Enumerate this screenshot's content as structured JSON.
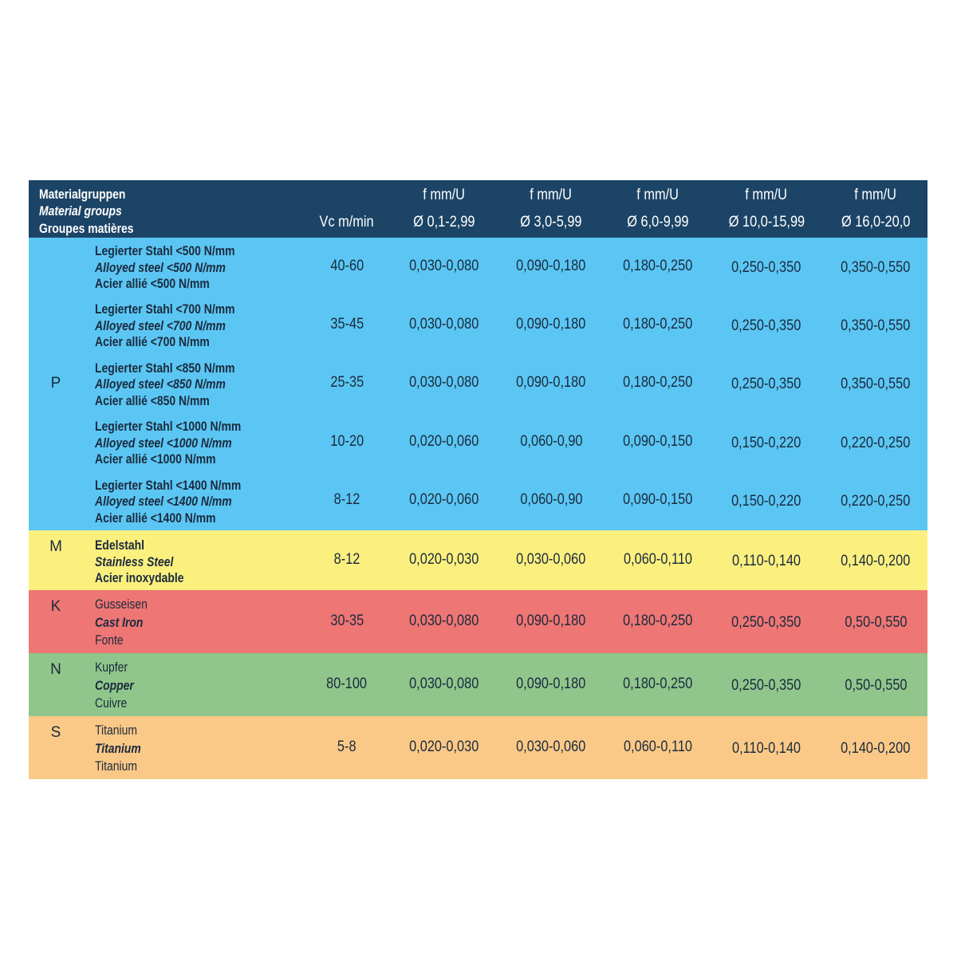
{
  "header": {
    "material_group_labels": [
      "Materialgruppen",
      "Material groups",
      "Groupes matières"
    ],
    "vc_label": "Vc m/min",
    "feed_columns": [
      {
        "unit": "f mm/U",
        "diameter": "Ø 0,1-2,99"
      },
      {
        "unit": "f mm/U",
        "diameter": "Ø 3,0-5,99"
      },
      {
        "unit": "f mm/U",
        "diameter": "Ø 6,0-9,99"
      },
      {
        "unit": "f mm/U",
        "diameter": "Ø 10,0-15,99"
      },
      {
        "unit": "f mm/U",
        "diameter": "Ø 16,0-20,0"
      }
    ]
  },
  "groups": [
    {
      "code": "P",
      "color": "#5bc6f3",
      "rows": [
        {
          "material": [
            "Legierter Stahl <500 N/mm",
            "Alloyed steel  <500 N/mm",
            "Acier allié <500 N/mm"
          ],
          "vc": "40-60",
          "feeds": [
            "0,030-0,080",
            "0,090-0,180",
            "0,180-0,250",
            "0,250-0,350",
            "0,350-0,550"
          ]
        },
        {
          "material": [
            "Legierter Stahl <700 N/mm",
            "Alloyed steel  <700 N/mm",
            "Acier allié <700 N/mm"
          ],
          "vc": "35-45",
          "feeds": [
            "0,030-0,080",
            "0,090-0,180",
            "0,180-0,250",
            "0,250-0,350",
            "0,350-0,550"
          ]
        },
        {
          "material": [
            "Legierter Stahl <850 N/mm",
            "Alloyed steel  <850 N/mm",
            "Acier allié <850 N/mm"
          ],
          "vc": "25-35",
          "feeds": [
            "0,030-0,080",
            "0,090-0,180",
            "0,180-0,250",
            "0,250-0,350",
            "0,350-0,550"
          ]
        },
        {
          "material": [
            "Legierter Stahl <1000 N/mm",
            "Alloyed steel  <1000 N/mm",
            "Acier allié <1000 N/mm"
          ],
          "vc": "10-20",
          "feeds": [
            "0,020-0,060",
            "0,060-0,90",
            "0,090-0,150",
            "0,150-0,220",
            "0,220-0,250"
          ]
        },
        {
          "material": [
            "Legierter Stahl <1400 N/mm",
            "Alloyed steel  <1400 N/mm",
            "Acier allié <1400 N/mm"
          ],
          "vc": "8-12",
          "feeds": [
            "0,020-0,060",
            "0,060-0,90",
            "0,090-0,150",
            "0,150-0,220",
            "0,220-0,250"
          ]
        }
      ]
    },
    {
      "code": "M",
      "color": "#fbf07e",
      "rows": [
        {
          "material": [
            "Edelstahl",
            "Stainless Steel",
            "Acier inoxydable"
          ],
          "vc": "8-12",
          "feeds": [
            "0,020-0,030",
            "0,030-0,060",
            "0,060-0,110",
            "0,110-0,140",
            "0,140-0,200"
          ]
        }
      ]
    },
    {
      "code": "K",
      "color": "#ee7674",
      "rows": [
        {
          "material": [
            "Gusseisen",
            "Cast Iron",
            "Fonte"
          ],
          "vc": "30-35",
          "feeds": [
            "0,030-0,080",
            "0,090-0,180",
            "0,180-0,250",
            "0,250-0,350",
            "0,50-0,550"
          ]
        }
      ]
    },
    {
      "code": "N",
      "color": "#90c68b",
      "rows": [
        {
          "material": [
            "Kupfer",
            "Copper",
            "Cuivre"
          ],
          "vc": "80-100",
          "feeds": [
            "0,030-0,080",
            "0,090-0,180",
            "0,180-0,250",
            "0,250-0,350",
            "0,50-0,550"
          ]
        }
      ]
    },
    {
      "code": "S",
      "color": "#fbc987",
      "rows": [
        {
          "material": [
            "Titanium",
            "Titanium",
            "Titanium"
          ],
          "vc": "5-8",
          "feeds": [
            "0,020-0,030",
            "0,030-0,060",
            "0,060-0,110",
            "0,110-0,140",
            "0,140-0,200"
          ]
        }
      ]
    }
  ]
}
